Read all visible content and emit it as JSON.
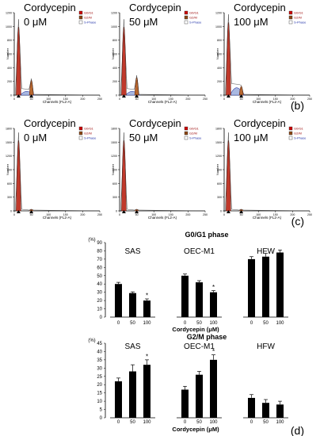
{
  "panel_labels": [
    "(b)",
    "(c)",
    "(d)"
  ],
  "flow": {
    "drug": "Cordycepin",
    "xlabel": "Channels (FL2-A)",
    "ylabel": "Number",
    "legend": [
      "G0/G1",
      "G2/M",
      "S-Phase"
    ],
    "legend_colors": [
      "#cc0000",
      "#8b4513",
      "#ffffff"
    ],
    "conditions": [
      "0 μM",
      "50 μM",
      "100 μM"
    ],
    "yticks_top": [
      "0",
      "200",
      "400",
      "600",
      "800",
      "1000",
      "1200"
    ],
    "yticks_bottom": [
      "0",
      "300",
      "600",
      "900",
      "1200",
      "1500",
      "1800"
    ],
    "xticks": [
      "0",
      "50",
      "100",
      "150",
      "200",
      "250"
    ]
  },
  "chart_data": [
    {
      "type": "bar",
      "title": "G0/G1 phase",
      "ylabel": "(%)",
      "xlabel": "Cordycepin (μM)",
      "ylim": [
        0,
        90
      ],
      "yticks": [
        0,
        10,
        20,
        30,
        40,
        50,
        60,
        70,
        80,
        90
      ],
      "groups": [
        {
          "name": "SAS",
          "categories": [
            "0",
            "50",
            "100"
          ],
          "values": [
            40,
            29,
            20
          ],
          "errors": [
            2,
            1.5,
            2
          ],
          "stars": [
            "",
            "",
            "*"
          ]
        },
        {
          "name": "OEC-M1",
          "categories": [
            "0",
            "50",
            "100"
          ],
          "values": [
            50,
            42,
            30
          ],
          "errors": [
            2,
            2,
            2
          ],
          "stars": [
            "",
            "",
            "*"
          ]
        },
        {
          "name": "HFW",
          "categories": [
            "0",
            "50",
            "100"
          ],
          "values": [
            70,
            73,
            78
          ],
          "errors": [
            3,
            4,
            3
          ],
          "stars": [
            "",
            "",
            ""
          ]
        }
      ]
    },
    {
      "type": "bar",
      "title": "G2/M phase",
      "ylabel": "(%)",
      "xlabel": "Cordycepin (μM)",
      "ylim": [
        0,
        45
      ],
      "yticks": [
        0,
        5,
        10,
        15,
        20,
        25,
        30,
        35,
        40,
        45
      ],
      "groups": [
        {
          "name": "SAS",
          "categories": [
            "0",
            "50",
            "100"
          ],
          "values": [
            22,
            28,
            32
          ],
          "errors": [
            2,
            4,
            3
          ],
          "stars": [
            "",
            "",
            "*"
          ]
        },
        {
          "name": "OEC-M1",
          "categories": [
            "0",
            "50",
            "100"
          ],
          "values": [
            17,
            26,
            35
          ],
          "errors": [
            2,
            2,
            3
          ],
          "stars": [
            "",
            "",
            "*"
          ]
        },
        {
          "name": "HFW",
          "categories": [
            "0",
            "50",
            "100"
          ],
          "values": [
            12,
            9,
            8
          ],
          "errors": [
            2,
            2,
            2
          ],
          "stars": [
            "",
            "",
            ""
          ]
        }
      ]
    }
  ]
}
